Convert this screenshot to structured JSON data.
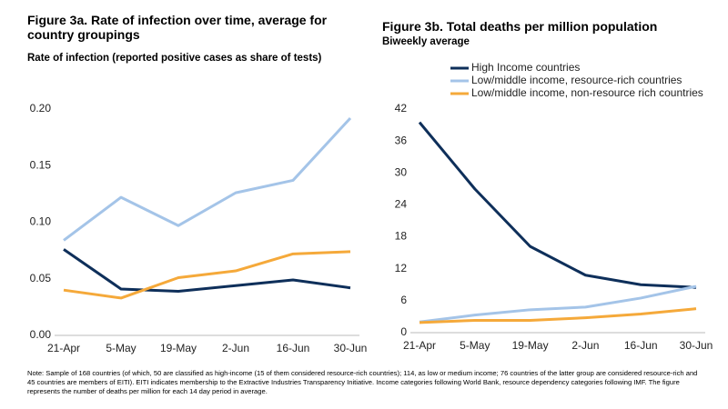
{
  "chart_data": [
    {
      "type": "line",
      "title": "Figure 3a. Rate of infection over time, average for country groupings",
      "subtitle": "Rate of infection (reported positive cases as share of tests)",
      "categories": [
        "21-Apr",
        "5-May",
        "19-May",
        "2-Jun",
        "16-Jun",
        "30-Jun"
      ],
      "ylim": [
        0,
        0.2
      ],
      "yticks": [
        {
          "value": 0,
          "label": "0.00"
        },
        {
          "value": 0.05,
          "label": "0.05"
        },
        {
          "value": 0.1,
          "label": "0.10"
        },
        {
          "value": 0.15,
          "label": "0.15"
        },
        {
          "value": 0.2,
          "label": "0.20"
        }
      ],
      "grid": false,
      "series": [
        {
          "color": "#0e2f5a",
          "values": [
            0.076,
            0.041,
            0.039,
            0.044,
            0.049,
            0.042
          ]
        },
        {
          "color": "#a4c4e8",
          "values": [
            0.084,
            0.122,
            0.097,
            0.126,
            0.137,
            0.192
          ]
        },
        {
          "color": "#f5a93a",
          "values": [
            0.04,
            0.033,
            0.051,
            0.057,
            0.072,
            0.074
          ]
        }
      ]
    },
    {
      "type": "line",
      "title": "Figure 3b. Total deaths per million population",
      "subtitle": "Biweekly average",
      "categories": [
        "21-Apr",
        "5-May",
        "19-May",
        "2-Jun",
        "16-Jun",
        "30-Jun"
      ],
      "ylim": [
        0,
        42
      ],
      "yticks": [
        0,
        6,
        12,
        18,
        24,
        30,
        36,
        42
      ],
      "grid": false,
      "legend": "top",
      "series": [
        {
          "name": "High Income countries",
          "color": "#0e2f5a",
          "values": [
            39.5,
            27,
            16.2,
            10.8,
            9,
            8.5
          ]
        },
        {
          "name": "Low/middle income, resource-rich countries",
          "color": "#a4c4e8",
          "values": [
            2,
            3.3,
            4.3,
            4.8,
            6.5,
            8.7
          ]
        },
        {
          "name": "Low/middle income, non-resource rich countries",
          "color": "#f5a93a",
          "values": [
            1.9,
            2.3,
            2.3,
            2.8,
            3.5,
            4.5
          ]
        }
      ]
    }
  ],
  "note": "Note: Sample of 168 countries (of which, 50 are classified as high-income (15 of them considered resource-rich countries); 114, as low or medium income; 76 countries of the latter group are considered resource-rich and 45 countries are members of EITI). EITI indicates membership to the Extractive Industries Transparency Initiative. Income categories following World Bank, resource dependency categories following IMF. The figure represents the number of deaths per million for each 14 day period in average."
}
